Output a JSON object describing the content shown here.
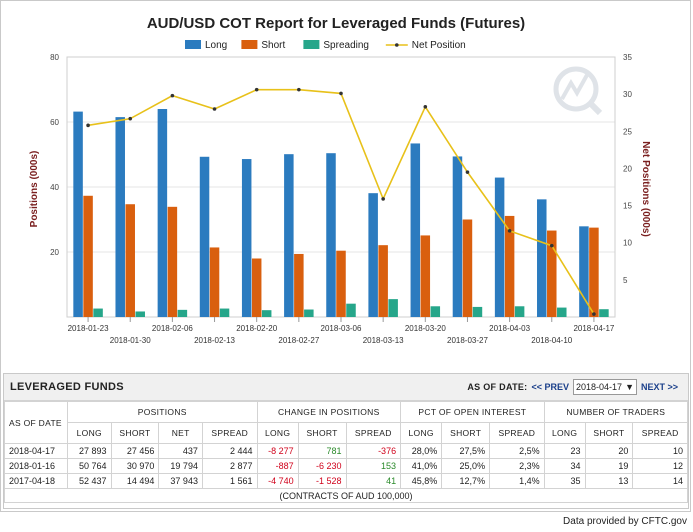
{
  "chart_data": {
    "type": "bar",
    "title": "AUD/USD COT Report for Leveraged Funds (Futures)",
    "ylabel": "Positions (000s)",
    "y2label": "Net Positions (000s)",
    "ylim": [
      0,
      80
    ],
    "y2lim": [
      0,
      35
    ],
    "yticks": [
      20,
      40,
      60,
      80
    ],
    "y2ticks": [
      5,
      10,
      15,
      20,
      25,
      30,
      35
    ],
    "categories": [
      "2018-01-23",
      "2018-01-30",
      "2018-02-06",
      "2018-02-13",
      "2018-02-20",
      "2018-02-27",
      "2018-03-06",
      "2018-03-13",
      "2018-03-20",
      "2018-03-27",
      "2018-04-03",
      "2018-04-10",
      "2018-04-17"
    ],
    "series": [
      {
        "name": "Long",
        "type": "bar",
        "color": "#2b7bbf",
        "values": [
          63.2,
          61.5,
          64.0,
          49.3,
          48.6,
          50.1,
          50.4,
          38.1,
          53.4,
          49.4,
          42.9,
          36.2,
          27.9
        ]
      },
      {
        "name": "Short",
        "type": "bar",
        "color": "#d95f0e",
        "values": [
          37.3,
          34.7,
          33.9,
          21.4,
          18.0,
          19.4,
          20.4,
          22.1,
          25.1,
          30.0,
          31.1,
          26.6,
          27.5
        ]
      },
      {
        "name": "Spreading",
        "type": "bar",
        "color": "#26a68a",
        "values": [
          2.6,
          1.7,
          2.2,
          2.6,
          2.1,
          2.3,
          4.1,
          5.5,
          3.3,
          3.1,
          3.3,
          2.9,
          2.4
        ]
      },
      {
        "name": "Net Position",
        "type": "line",
        "axis": "right",
        "color": "#e8c11a",
        "values": [
          25.8,
          26.7,
          29.8,
          28.0,
          30.6,
          30.6,
          30.1,
          15.9,
          28.3,
          19.5,
          11.6,
          9.6,
          0.4
        ]
      }
    ],
    "legend_position": "top-center",
    "grid": true
  },
  "table": {
    "title": "LEVERAGED FUNDS",
    "asof_label": "AS OF DATE:",
    "prev_label": "<< PREV",
    "next_label": "NEXT >>",
    "selected_date": "2018-04-17",
    "group_headers": {
      "asof": "AS OF DATE",
      "positions": "POSITIONS",
      "change": "CHANGE IN POSITIONS",
      "pct": "PCT OF OPEN INTEREST",
      "traders": "NUMBER OF TRADERS"
    },
    "columns": {
      "long": "LONG",
      "short": "SHORT",
      "net": "NET",
      "spread": "SPREAD",
      "spread2": "SPREAD"
    },
    "rows": [
      {
        "date": "2018-04-17",
        "long": "27 893",
        "short": "27 456",
        "net": "437",
        "spread": "2 444",
        "c_long": "-8 277",
        "c_short": "781",
        "c_spread": "-376",
        "p_long": "28,0%",
        "p_short": "27,5%",
        "p_spread": "2,5%",
        "t_long": "23",
        "t_short": "20",
        "t_spread": "10"
      },
      {
        "date": "2018-01-16",
        "long": "50 764",
        "short": "30 970",
        "net": "19 794",
        "spread": "2 877",
        "c_long": "-887",
        "c_short": "-6 230",
        "c_spread": "153",
        "p_long": "41,0%",
        "p_short": "25,0%",
        "p_spread": "2,3%",
        "t_long": "34",
        "t_short": "19",
        "t_spread": "12"
      },
      {
        "date": "2017-04-18",
        "long": "52 437",
        "short": "14 494",
        "net": "37 943",
        "spread": "1 561",
        "c_long": "-4 740",
        "c_short": "-1 528",
        "c_spread": "41",
        "p_long": "45,8%",
        "p_short": "12,7%",
        "p_spread": "1,4%",
        "t_long": "35",
        "t_short": "13",
        "t_spread": "14"
      }
    ],
    "footnote": "(CONTRACTS OF AUD 100,000)"
  },
  "credit": "Data provided by CFTC.gov",
  "icons": {
    "dropdown": "caret-down-icon",
    "watermark": "logo-watermark"
  }
}
